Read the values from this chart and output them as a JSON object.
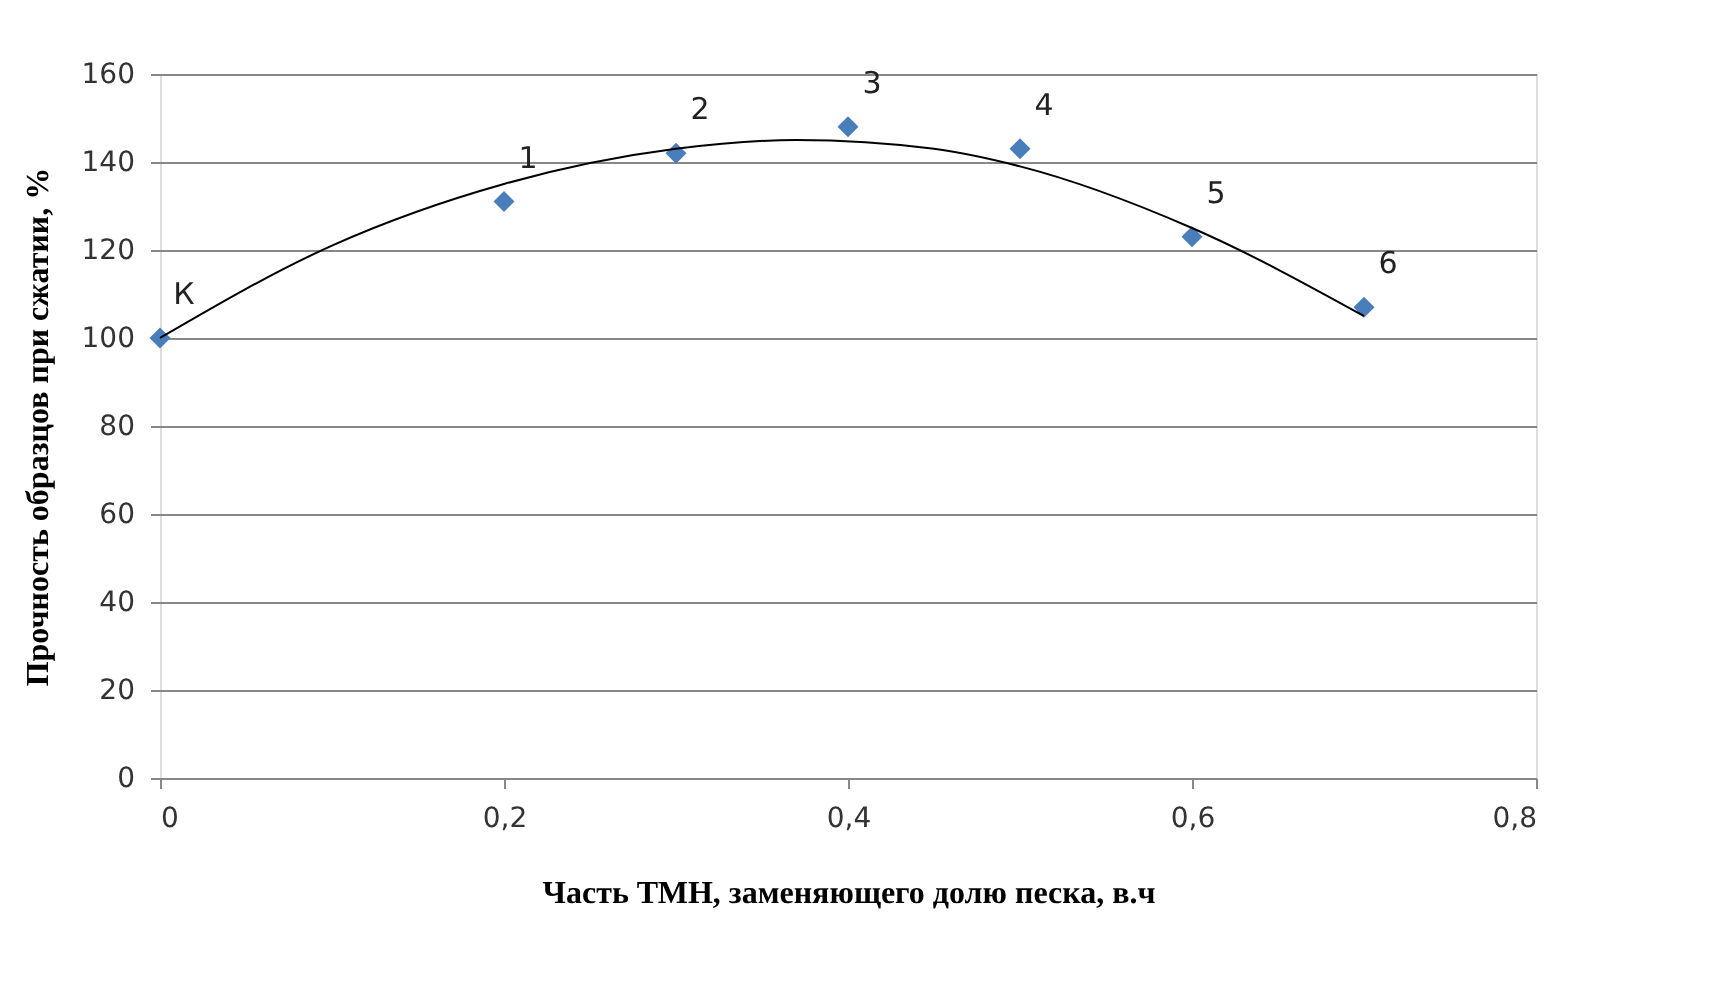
{
  "chart_data": {
    "type": "scatter",
    "xlabel": "Часть ТМН, заменяющего долю песка, в.ч",
    "ylabel": "Прочность образцов при сжатии, %",
    "xlim": [
      0,
      0.8
    ],
    "xticks": [
      0,
      {
        "value": 0.2,
        "label": "0,2"
      },
      {
        "value": 0.4,
        "label": "0,4"
      },
      {
        "value": 0.6,
        "label": "0,6"
      },
      {
        "value": 0.8,
        "label": "0,8"
      }
    ],
    "ylim": [
      0,
      160
    ],
    "yticks": [
      0,
      20,
      40,
      60,
      80,
      100,
      120,
      140,
      160
    ],
    "grid": "y",
    "marker": "diamond",
    "series": [
      {
        "color": "#4a7ebb",
        "x": [
          0,
          0.2,
          0.3,
          0.4,
          0.5,
          0.6,
          0.7
        ],
        "values": [
          100,
          131,
          142,
          148,
          143,
          123,
          107
        ]
      },
      {
        "type": "line",
        "color": "#000000",
        "marker": "none",
        "x": [
          0,
          0.1,
          0.2,
          0.3,
          0.37,
          0.45,
          0.5,
          0.6,
          0.7
        ],
        "values": [
          100,
          121,
          135,
          143,
          145,
          143,
          139,
          125,
          105
        ]
      }
    ],
    "annotations": [
      {
        "text": "К",
        "x": 0,
        "y": 100
      },
      {
        "text": "1",
        "x": 0.2,
        "y": 131
      },
      {
        "text": "2",
        "x": 0.3,
        "y": 142
      },
      {
        "text": "3",
        "x": 0.4,
        "y": 148
      },
      {
        "text": "4",
        "x": 0.5,
        "y": 143
      },
      {
        "text": "5",
        "x": 0.6,
        "y": 123
      },
      {
        "text": "6",
        "x": 0.7,
        "y": 107
      }
    ]
  }
}
